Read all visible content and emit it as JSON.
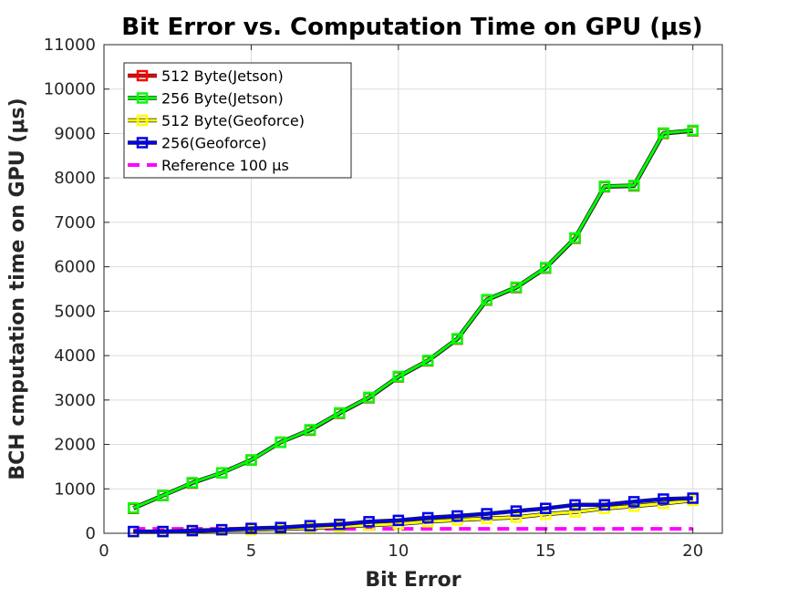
{
  "chart_data": {
    "type": "line",
    "title": "Bit Error vs. Computation Time on GPU (μs)",
    "xlabel": "Bit Error",
    "ylabel": "BCH cmputation time on GPU (μs)",
    "xlim": [
      0,
      21
    ],
    "ylim": [
      0,
      11000
    ],
    "xticks": [
      0,
      5,
      10,
      15,
      20
    ],
    "yticks": [
      0,
      1000,
      2000,
      3000,
      4000,
      5000,
      6000,
      7000,
      8000,
      9000,
      10000,
      11000
    ],
    "grid": true,
    "legend_position": "top-left",
    "x": [
      1,
      2,
      3,
      4,
      5,
      6,
      7,
      8,
      9,
      10,
      11,
      12,
      13,
      14,
      15,
      16,
      17,
      18,
      19,
      20
    ],
    "series": [
      {
        "name": "512 Byte(Jetson)",
        "color": "#ff0000",
        "style": "solid",
        "marker": "square",
        "values": [
          560,
          850,
          1130,
          1360,
          1650,
          2050,
          2320,
          2700,
          3050,
          3520,
          3880,
          4370,
          5250,
          5530,
          5970,
          6640,
          7800,
          7820,
          9000,
          9060
        ]
      },
      {
        "name": "256 Byte(Jetson)",
        "color": "#00ff00",
        "style": "solid",
        "marker": "square",
        "values": [
          570,
          850,
          1140,
          1360,
          1650,
          2050,
          2330,
          2710,
          3060,
          3530,
          3890,
          4380,
          5260,
          5540,
          5980,
          6650,
          7810,
          7830,
          9010,
          9070
        ]
      },
      {
        "name": "512 Byte(Geoforce)",
        "color": "#ffff00",
        "style": "solid",
        "marker": "square",
        "values": [
          30,
          30,
          50,
          70,
          80,
          100,
          120,
          150,
          180,
          210,
          260,
          300,
          330,
          360,
          430,
          480,
          560,
          610,
          670,
          740
        ]
      },
      {
        "name": "256(Geoforce)",
        "color": "#0000ee",
        "style": "solid",
        "marker": "square",
        "values": [
          40,
          40,
          60,
          80,
          110,
          130,
          170,
          200,
          260,
          290,
          350,
          390,
          440,
          500,
          560,
          640,
          640,
          710,
          770,
          790
        ]
      },
      {
        "name": "Reference 100 μs",
        "color": "#ff00ff",
        "style": "dashed",
        "marker": "none",
        "values": [
          100,
          100,
          100,
          100,
          100,
          100,
          100,
          100,
          100,
          100,
          100,
          100,
          100,
          100,
          100,
          100,
          100,
          100,
          100,
          100
        ]
      }
    ]
  }
}
